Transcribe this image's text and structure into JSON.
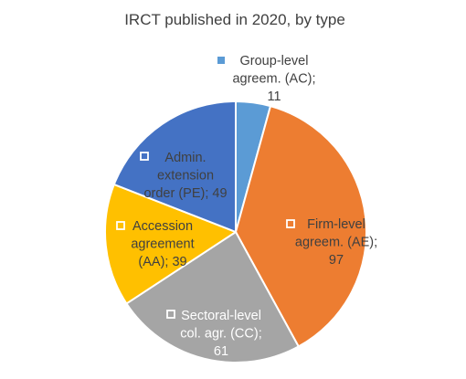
{
  "chart_data": {
    "type": "pie",
    "title": "IRCT published in 2020, by type",
    "slices": [
      {
        "label_lines": [
          "Group-level",
          "agreem. (AC);",
          "11"
        ],
        "value": 11,
        "color": "#5B9BD5",
        "label_color": "#404040"
      },
      {
        "label_lines": [
          "Firm-level",
          "agreem. (AE);",
          "97"
        ],
        "value": 97,
        "color": "#ED7D31",
        "label_color": "#404040"
      },
      {
        "label_lines": [
          "Sectoral-level",
          "col. agr. (CC);",
          "61"
        ],
        "value": 61,
        "color": "#A5A5A5",
        "label_color": "#ffffff"
      },
      {
        "label_lines": [
          "Accession",
          "agreement",
          "(AA); 39"
        ],
        "value": 39,
        "color": "#FFC000",
        "label_color": "#404040"
      },
      {
        "label_lines": [
          "Admin.",
          "extension",
          "order (PE); 49"
        ],
        "value": 49,
        "color": "#4472C4",
        "label_color": "#404040"
      }
    ],
    "legend": "none"
  }
}
